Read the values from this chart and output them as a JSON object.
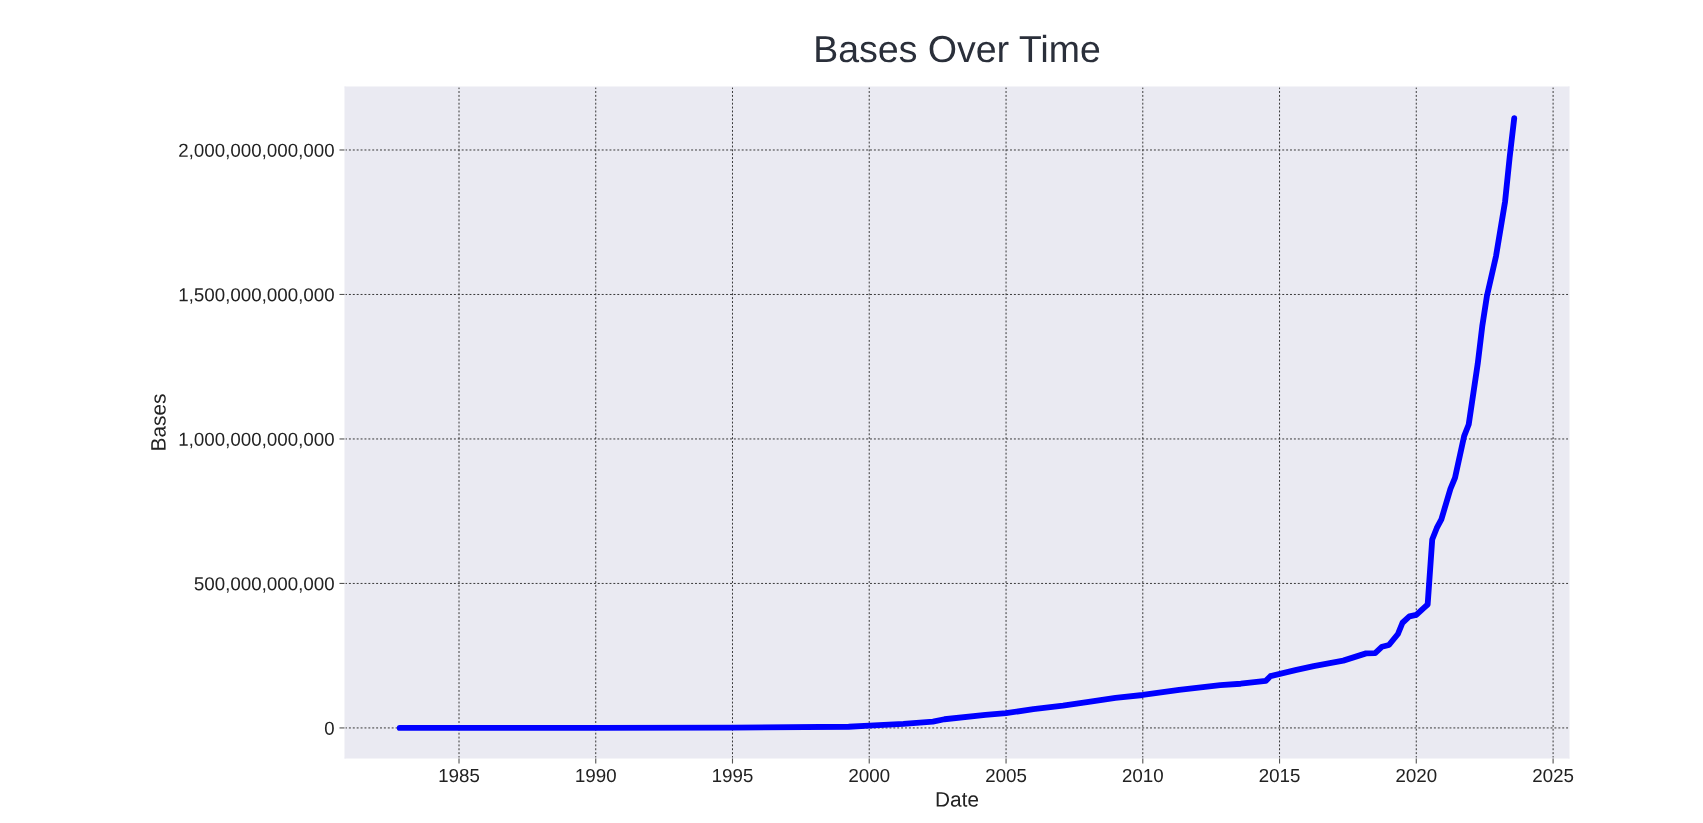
{
  "chart_data": {
    "type": "line",
    "title": "Bases Over Time",
    "xlabel": "Date",
    "ylabel": "Bases",
    "x": [
      "1982-11",
      "1990-01",
      "1995-01",
      "1999-04",
      "2000-01",
      "2001-04",
      "2002-05",
      "2002-10",
      "2004-04",
      "2005-01",
      "2006-01",
      "2007-02",
      "2008-02",
      "2009-01",
      "2010-01",
      "2011-05",
      "2012-11",
      "2013-08",
      "2014-07",
      "2014-09",
      "2015-08",
      "2016-04",
      "2017-05",
      "2018-03",
      "2018-07",
      "2018-10",
      "2019-01",
      "2019-05",
      "2019-07",
      "2019-10",
      "2020-01",
      "2020-04",
      "2020-06",
      "2020-08",
      "2020-10",
      "2020-12",
      "2021-04",
      "2021-06",
      "2021-10",
      "2021-12",
      "2022-04",
      "2022-06",
      "2022-08",
      "2022-12",
      "2023-04",
      "2023-06",
      "2023-08"
    ],
    "series": [
      {
        "color": "#0000ff",
        "values": [
          0,
          0,
          1000000000,
          4000000000,
          8000000000,
          14000000000,
          22000000000,
          30000000000,
          45000000000,
          51000000000,
          65000000000,
          77000000000,
          91000000000,
          104000000000,
          114000000000,
          132000000000,
          148000000000,
          153000000000,
          163000000000,
          179000000000,
          200000000000,
          214000000000,
          233000000000,
          258000000000,
          259000000000,
          281000000000,
          287000000000,
          325000000000,
          364000000000,
          386000000000,
          391000000000,
          413000000000,
          427000000000,
          652000000000,
          692000000000,
          722000000000,
          827000000000,
          865000000000,
          1010000000000,
          1050000000000,
          1261000000000,
          1392000000000,
          1494000000000,
          1633000000000,
          1822000000000,
          1975000000000,
          2110000000000
        ]
      }
    ],
    "xlim": [
      "1980-11",
      "2025-08"
    ],
    "xticks": [
      "1985",
      "1990",
      "1995",
      "2000",
      "2005",
      "2010",
      "2015",
      "2020",
      "2025"
    ],
    "ylim": [
      -104000000000,
      2218000000000
    ],
    "yticks": [
      0,
      {
        "value": 500000000000,
        "label": "500,000,000,000"
      },
      {
        "value": 1000000000000,
        "label": "1,000,000,000,000"
      },
      {
        "value": 1500000000000,
        "label": "1,500,000,000,000"
      },
      {
        "value": 2000000000000,
        "label": "2,000,000,000,000"
      }
    ],
    "grid": true,
    "marker": "none",
    "line_style": "solid"
  }
}
